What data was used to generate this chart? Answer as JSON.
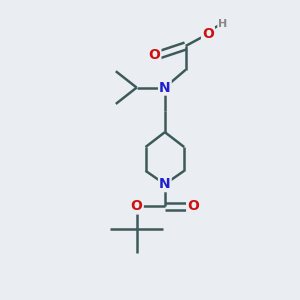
{
  "bg_color": "#eaeef2",
  "bond_color": "#3d5a5a",
  "N_color": "#2020cc",
  "O_color": "#cc1111",
  "H_color": "#888888",
  "line_width": 1.8,
  "font_size": 10,
  "font_size_h": 8,
  "xlim": [
    0,
    10
  ],
  "ylim": [
    0,
    10
  ]
}
